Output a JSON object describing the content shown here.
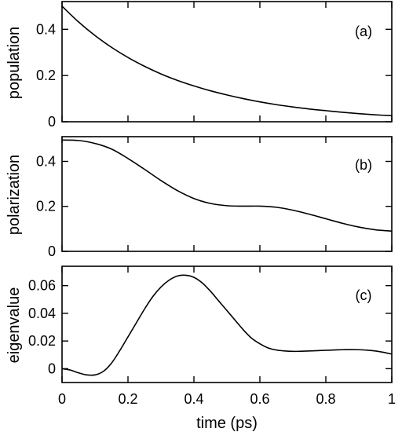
{
  "chart_data": [
    {
      "type": "line",
      "panel_label": "(a)",
      "ylabel": "population",
      "xlim": [
        0,
        1
      ],
      "ylim": [
        0,
        0.52
      ],
      "yticks": [
        0,
        0.2,
        0.4
      ],
      "ytick_labels": [
        "0",
        "0.2",
        "0.4"
      ],
      "grid": false,
      "series": [
        {
          "x": [
            0,
            0.05,
            0.1,
            0.15,
            0.2,
            0.25,
            0.3,
            0.35,
            0.4,
            0.45,
            0.5,
            0.55,
            0.6,
            0.65,
            0.7,
            0.75,
            0.8,
            0.85,
            0.9,
            0.95,
            1.0
          ],
          "y": [
            0.5,
            0.432,
            0.373,
            0.322,
            0.278,
            0.24,
            0.207,
            0.179,
            0.155,
            0.134,
            0.116,
            0.1,
            0.086,
            0.074,
            0.064,
            0.055,
            0.048,
            0.041,
            0.035,
            0.03,
            0.026
          ]
        }
      ]
    },
    {
      "type": "line",
      "panel_label": "(b)",
      "ylabel": "polarization",
      "xlim": [
        0,
        1
      ],
      "ylim": [
        0,
        0.51
      ],
      "yticks": [
        0,
        0.2,
        0.4
      ],
      "ytick_labels": [
        "0",
        "0.2",
        "0.4"
      ],
      "grid": false,
      "series": [
        {
          "x": [
            0,
            0.05,
            0.1,
            0.15,
            0.2,
            0.25,
            0.3,
            0.35,
            0.4,
            0.45,
            0.5,
            0.55,
            0.6,
            0.65,
            0.7,
            0.75,
            0.8,
            0.85,
            0.9,
            0.95,
            1.0
          ],
          "y": [
            0.495,
            0.493,
            0.48,
            0.455,
            0.413,
            0.365,
            0.315,
            0.27,
            0.235,
            0.213,
            0.203,
            0.201,
            0.201,
            0.196,
            0.183,
            0.165,
            0.145,
            0.125,
            0.108,
            0.096,
            0.09
          ]
        }
      ]
    },
    {
      "type": "line",
      "panel_label": "(c)",
      "ylabel": "eigenvalue",
      "xlabel": "time (ps)",
      "xlim": [
        0,
        1
      ],
      "ylim": [
        -0.01,
        0.074
      ],
      "yticks": [
        0,
        0.02,
        0.04,
        0.06
      ],
      "ytick_labels": [
        "0",
        "0.02",
        "0.04",
        "0.06"
      ],
      "xticks": [
        0,
        0.2,
        0.4,
        0.6,
        0.8,
        1
      ],
      "xtick_labels": [
        "0",
        "0.2",
        "0.4",
        "0.6",
        "0.8",
        "1"
      ],
      "grid": false,
      "series": [
        {
          "x": [
            0,
            0.025,
            0.05,
            0.075,
            0.1,
            0.125,
            0.15,
            0.175,
            0.2,
            0.225,
            0.25,
            0.275,
            0.3,
            0.325,
            0.35,
            0.375,
            0.4,
            0.425,
            0.45,
            0.475,
            0.5,
            0.525,
            0.55,
            0.575,
            0.6,
            0.625,
            0.65,
            0.675,
            0.7,
            0.725,
            0.75,
            0.775,
            0.8,
            0.825,
            0.85,
            0.875,
            0.9,
            0.925,
            0.95,
            0.975,
            1.0
          ],
          "y": [
            0.0,
            -0.001,
            -0.003,
            -0.0045,
            -0.0045,
            -0.002,
            0.004,
            0.013,
            0.023,
            0.033,
            0.043,
            0.052,
            0.059,
            0.064,
            0.067,
            0.0675,
            0.066,
            0.062,
            0.056,
            0.049,
            0.042,
            0.035,
            0.028,
            0.022,
            0.018,
            0.015,
            0.0135,
            0.0128,
            0.0125,
            0.0126,
            0.0128,
            0.013,
            0.0133,
            0.0135,
            0.0137,
            0.0138,
            0.0137,
            0.0134,
            0.0128,
            0.0118,
            0.0105
          ]
        }
      ]
    }
  ]
}
